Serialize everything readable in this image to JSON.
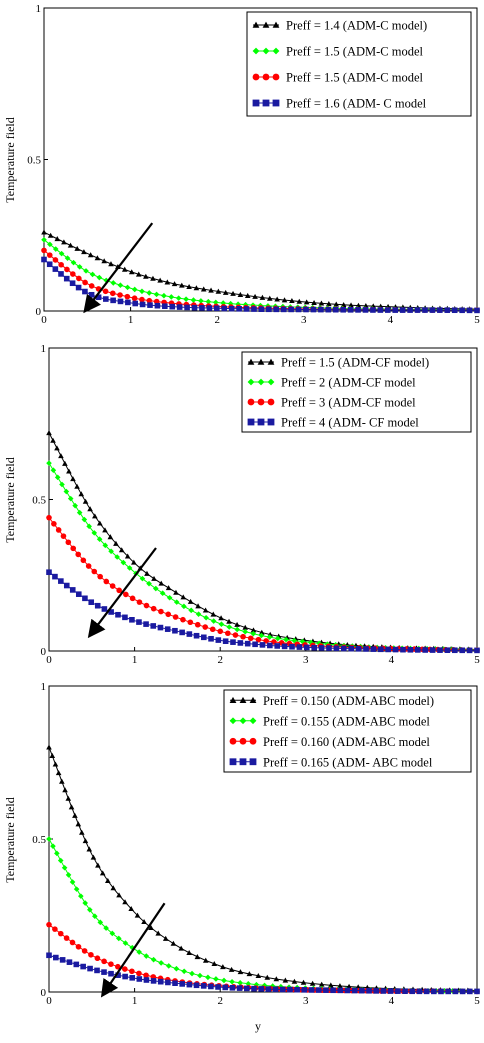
{
  "chart_data": [
    {
      "type": "line",
      "xlabel": "",
      "ylabel": "Temperature field",
      "xlim": [
        0,
        5
      ],
      "ylim": [
        0,
        1
      ],
      "x_ticks": [
        "0",
        "1",
        "2",
        "3",
        "4",
        "5"
      ],
      "y_ticks": [
        "0",
        "0.5",
        "1"
      ],
      "grid": false,
      "legend_position": "top-right",
      "x": [
        0,
        0.5,
        1,
        1.5,
        2,
        2.5,
        3,
        3.5,
        4,
        4.5,
        5
      ],
      "series": [
        {
          "name": "Preff = 1.4 (ADM-C model)",
          "marker": "triangle",
          "color": "#000000",
          "values": [
            0.26,
            0.19,
            0.13,
            0.09,
            0.065,
            0.045,
            0.03,
            0.02,
            0.014,
            0.009,
            0.006
          ]
        },
        {
          "name": "Preff = 1.5 (ADM-C model",
          "marker": "diamond",
          "color": "#00ff00",
          "values": [
            0.235,
            0.13,
            0.075,
            0.045,
            0.028,
            0.018,
            0.012,
            0.008,
            0.006,
            0.005,
            0.004
          ]
        },
        {
          "name": "Preff = 1.5 (ADM-C model",
          "marker": "circle",
          "color": "#ff0000",
          "values": [
            0.2,
            0.09,
            0.045,
            0.025,
            0.015,
            0.01,
            0.007,
            0.005,
            0.004,
            0.003,
            0.003
          ]
        },
        {
          "name": "Preff = 1.6  (ADM- C model",
          "marker": "square",
          "color": "#1a1aa0",
          "values": [
            0.17,
            0.06,
            0.027,
            0.014,
            0.009,
            0.006,
            0.005,
            0.004,
            0.003,
            0.003,
            0.002
          ]
        }
      ],
      "arrow": {
        "from": [
          1.25,
          0.29
        ],
        "to": [
          0.5,
          0.01
        ]
      }
    },
    {
      "type": "line",
      "xlabel": "",
      "ylabel": "Temperature field",
      "xlim": [
        0,
        5
      ],
      "ylim": [
        0,
        1
      ],
      "x_ticks": [
        "0",
        "1",
        "2",
        "3",
        "4",
        "5"
      ],
      "y_ticks": [
        "0",
        "0.5",
        "1"
      ],
      "grid": false,
      "legend_position": "top-right",
      "x": [
        0,
        0.5,
        1,
        1.5,
        2,
        2.5,
        3,
        3.5,
        4,
        4.5,
        5
      ],
      "series": [
        {
          "name": "Preff = 1.5 (ADM-CF model)",
          "marker": "triangle",
          "color": "#000000",
          "values": [
            0.72,
            0.46,
            0.29,
            0.19,
            0.11,
            0.06,
            0.035,
            0.02,
            0.012,
            0.008,
            0.005
          ]
        },
        {
          "name": "Preff = 2 (ADM-CF model",
          "marker": "diamond",
          "color": "#00ff00",
          "values": [
            0.62,
            0.4,
            0.26,
            0.16,
            0.09,
            0.05,
            0.03,
            0.017,
            0.01,
            0.007,
            0.004
          ]
        },
        {
          "name": "Preff = 3 (ADM-CF model",
          "marker": "circle",
          "color": "#ff0000",
          "values": [
            0.44,
            0.27,
            0.17,
            0.11,
            0.065,
            0.035,
            0.02,
            0.012,
            0.008,
            0.005,
            0.003
          ]
        },
        {
          "name": "Preff = 4 (ADM- CF model",
          "marker": "square",
          "color": "#1a1aa0",
          "values": [
            0.26,
            0.16,
            0.1,
            0.065,
            0.035,
            0.02,
            0.012,
            0.008,
            0.005,
            0.003,
            0.002
          ]
        }
      ],
      "arrow": {
        "from": [
          1.25,
          0.34
        ],
        "to": [
          0.5,
          0.06
        ]
      }
    },
    {
      "type": "line",
      "xlabel": "y",
      "ylabel": "Temperature field",
      "xlim": [
        0,
        5
      ],
      "ylim": [
        0,
        1
      ],
      "x_ticks": [
        "0",
        "1",
        "2",
        "3",
        "4",
        "5"
      ],
      "y_ticks": [
        "0",
        "0.5",
        "1"
      ],
      "grid": false,
      "legend_position": "top-right",
      "x": [
        0,
        0.5,
        1,
        1.5,
        2,
        2.5,
        3,
        3.5,
        4,
        4.5,
        5
      ],
      "series": [
        {
          "name": "Preff = 0.150 (ADM-ABC model)",
          "marker": "triangle",
          "color": "#000000",
          "values": [
            0.8,
            0.45,
            0.26,
            0.15,
            0.085,
            0.05,
            0.03,
            0.018,
            0.011,
            0.007,
            0.005
          ]
        },
        {
          "name": "Preff = 0.155 (ADM-ABC model",
          "marker": "diamond",
          "color": "#00ff00",
          "values": [
            0.5,
            0.26,
            0.14,
            0.075,
            0.04,
            0.022,
            0.013,
            0.008,
            0.005,
            0.004,
            0.003
          ]
        },
        {
          "name": "Preff = 0.160 (ADM-ABC model",
          "marker": "circle",
          "color": "#ff0000",
          "values": [
            0.22,
            0.12,
            0.065,
            0.035,
            0.02,
            0.012,
            0.007,
            0.005,
            0.003,
            0.003,
            0.002
          ]
        },
        {
          "name": "Preff = 0.165 (ADM- ABC model",
          "marker": "square",
          "color": "#1a1aa0",
          "values": [
            0.12,
            0.075,
            0.045,
            0.028,
            0.016,
            0.01,
            0.007,
            0.005,
            0.003,
            0.002,
            0.002
          ]
        }
      ],
      "arrow": {
        "from": [
          1.35,
          0.29
        ],
        "to": [
          0.65,
          0.0
        ]
      }
    }
  ]
}
